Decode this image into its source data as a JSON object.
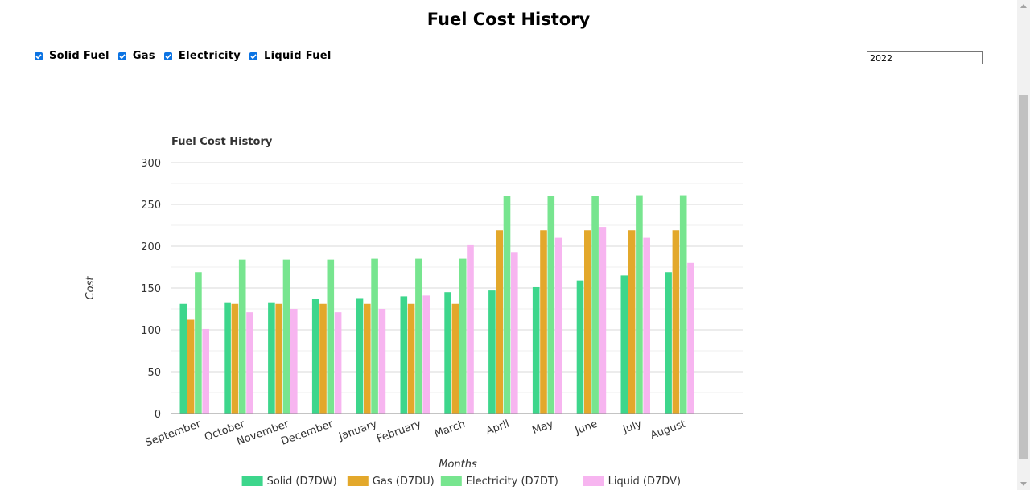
{
  "page": {
    "title": "Fuel Cost History",
    "filters": [
      {
        "label": "Solid Fuel",
        "checked": true
      },
      {
        "label": "Gas",
        "checked": true
      },
      {
        "label": "Electricity",
        "checked": true
      },
      {
        "label": "Liquid Fuel",
        "checked": true
      }
    ],
    "year_value": "2022"
  },
  "chart_data": {
    "type": "bar",
    "title": "Fuel Cost History",
    "xlabel": "Months",
    "ylabel": "Cost",
    "ylim": [
      0,
      300
    ],
    "yticks": [
      0,
      50,
      100,
      150,
      200,
      250,
      300
    ],
    "grid": true,
    "legend_position": "bottom",
    "categories": [
      "September",
      "October",
      "November",
      "December",
      "January",
      "February",
      "March",
      "April",
      "May",
      "June",
      "July",
      "August"
    ],
    "series": [
      {
        "name": "Solid (D7DW)",
        "color": "#3dd68c",
        "values": [
          131,
          133,
          133,
          137,
          138,
          140,
          145,
          147,
          151,
          159,
          165,
          169
        ]
      },
      {
        "name": "Gas (D7DU)",
        "color": "#e3a82b",
        "values": [
          112,
          131,
          131,
          131,
          131,
          131,
          131,
          219,
          219,
          219,
          219,
          219
        ]
      },
      {
        "name": "Electricity (D7DT)",
        "color": "#77e58f",
        "values": [
          169,
          184,
          184,
          184,
          185,
          185,
          185,
          260,
          260,
          260,
          261,
          261
        ]
      },
      {
        "name": "Liquid (D7DV)",
        "color": "#f7b5f0",
        "values": [
          101,
          121,
          125,
          121,
          125,
          141,
          202,
          193,
          210,
          223,
          210,
          180
        ]
      }
    ]
  }
}
